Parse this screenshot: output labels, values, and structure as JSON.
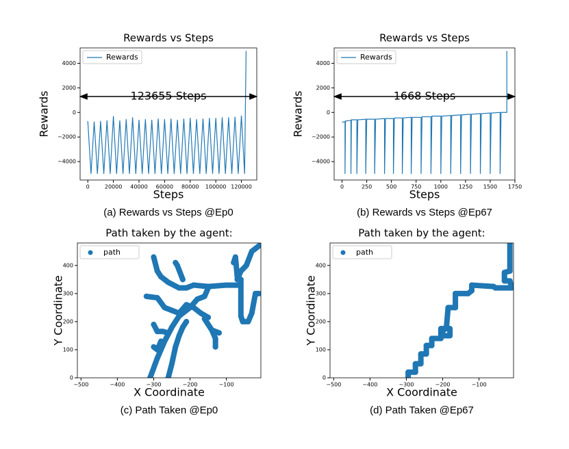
{
  "chart_data": [
    {
      "type": "line",
      "title": "Rewards vs Steps",
      "x_label": "Steps",
      "y_label": "Rewards",
      "annotation": "123655 Steps",
      "caption": "(a) Rewards vs Steps @Ep0",
      "legend": "upper left",
      "x": [
        0,
        2500,
        5000,
        7500,
        10000,
        12500,
        15000,
        17500,
        20000,
        22500,
        25000,
        27500,
        30000,
        32500,
        35000,
        37500,
        40000,
        42500,
        45000,
        47500,
        50000,
        52500,
        55000,
        57500,
        60000,
        62500,
        65000,
        67500,
        70000,
        72500,
        75000,
        77500,
        80000,
        82500,
        85000,
        87500,
        90000,
        92500,
        95000,
        97500,
        100000,
        102500,
        105000,
        107500,
        110000,
        112500,
        115000,
        117500,
        120000,
        122500,
        123655
      ],
      "series": [
        {
          "name": "Rewards",
          "color": "#1f77b4",
          "values": [
            -700,
            -5000,
            -750,
            -5000,
            -700,
            -5000,
            -650,
            -5000,
            -300,
            -5000,
            -650,
            -5000,
            -550,
            -5000,
            -400,
            -5000,
            -600,
            -5000,
            -550,
            -5000,
            -600,
            -5000,
            -500,
            -5000,
            -550,
            -5000,
            -500,
            -5000,
            -600,
            -5000,
            -500,
            -5000,
            -450,
            -5000,
            -550,
            -5000,
            -500,
            -5000,
            -450,
            -5000,
            -450,
            -5000,
            -400,
            -5000,
            -400,
            -5000,
            -350,
            -5000,
            -250,
            -5000,
            5000
          ]
        }
      ],
      "xlim": [
        -6000,
        132000
      ],
      "ylim": [
        -5500,
        5250
      ],
      "xticks": [
        0,
        20000,
        40000,
        60000,
        80000,
        100000,
        120000
      ],
      "yticks": [
        {
          "value": -4000,
          "label": "−4000"
        },
        {
          "value": -2000,
          "label": "−2000"
        },
        0,
        2000,
        4000
      ]
    },
    {
      "type": "line",
      "title": "Rewards vs Steps",
      "x_label": "Steps",
      "y_label": "Rewards",
      "annotation": "1668 Steps",
      "caption": "(b) Rewards vs Steps @Ep67",
      "legend": "upper left",
      "x": [
        0,
        30,
        30,
        35,
        90,
        90,
        95,
        150,
        150,
        160,
        240,
        240,
        250,
        330,
        330,
        340,
        430,
        430,
        440,
        520,
        520,
        530,
        610,
        610,
        620,
        700,
        700,
        710,
        800,
        800,
        810,
        900,
        900,
        910,
        1000,
        1000,
        1010,
        1100,
        1100,
        1110,
        1200,
        1200,
        1210,
        1300,
        1300,
        1310,
        1400,
        1400,
        1410,
        1500,
        1500,
        1510,
        1600,
        1600,
        1610,
        1668,
        1668
      ],
      "series": [
        {
          "name": "Rewards",
          "color": "#1f77b4",
          "values": [
            -800,
            -750,
            -5000,
            -700,
            -650,
            -5000,
            -600,
            -600,
            -5000,
            -600,
            -550,
            -5000,
            -550,
            -550,
            -5000,
            -550,
            -500,
            -5000,
            -500,
            -500,
            -5000,
            -450,
            -450,
            -5000,
            -450,
            -400,
            -5000,
            -400,
            -400,
            -5000,
            -350,
            -350,
            -5000,
            -300,
            -300,
            -5000,
            -300,
            -250,
            -5000,
            -250,
            -200,
            -5000,
            -200,
            -150,
            -5000,
            -150,
            -100,
            -5000,
            -100,
            -50,
            -5000,
            -50,
            0,
            -5000,
            0,
            0,
            5000
          ]
        }
      ],
      "xlim": [
        -80,
        1750
      ],
      "ylim": [
        -5500,
        5250
      ],
      "xticks": [
        0,
        250,
        500,
        750,
        1000,
        1250,
        1500,
        1750
      ],
      "yticks": [
        {
          "value": -4000,
          "label": "−4000"
        },
        {
          "value": -2000,
          "label": "−2000"
        },
        0,
        2000,
        4000
      ]
    },
    {
      "type": "scatter",
      "title": "Path taken by the agent:",
      "x_label": "X Coordinate",
      "y_label": "Y Coordinate",
      "caption": "(c) Path Taken @Ep0",
      "legend": "upper left",
      "series": [
        {
          "name": "path",
          "color": "#1f77b4",
          "x": [
            -300,
            -290,
            -280,
            -260,
            -230,
            -210,
            -190,
            -150,
            -100,
            -70,
            null,
            -320,
            -290,
            -270,
            -250,
            -230,
            -210,
            -190,
            -170,
            -150,
            null,
            -310,
            -290,
            -270,
            -250,
            -230,
            -200,
            -180,
            -160,
            -150,
            null,
            -260,
            -250,
            -240,
            -230,
            -220,
            -210,
            null,
            -280,
            -290,
            -300,
            null,
            -300,
            -290,
            -275,
            -260,
            null,
            -240,
            -235,
            -220,
            null,
            -130,
            -130,
            -140,
            -150,
            -160,
            null,
            -140,
            -120,
            null,
            -80,
            -75,
            -70,
            -60,
            -60,
            -55,
            -40,
            -30,
            -20,
            -10,
            null,
            -70,
            -60,
            -45,
            -30,
            -20,
            -10
          ],
          "values": [
            430,
            380,
            360,
            340,
            320,
            320,
            330,
            325,
            330,
            330,
            null,
            290,
            285,
            250,
            240,
            230,
            260,
            250,
            230,
            215,
            null,
            0,
            70,
            130,
            180,
            220,
            250,
            280,
            290,
            320,
            null,
            0,
            50,
            110,
            150,
            180,
            200,
            null,
            130,
            100,
            110,
            null,
            190,
            165,
            165,
            160,
            null,
            410,
            400,
            350,
            null,
            110,
            140,
            170,
            190,
            210,
            null,
            170,
            160,
            null,
            410,
            430,
            360,
            350,
            220,
            200,
            200,
            230,
            300,
            300,
            null,
            350,
            380,
            400,
            450,
            460,
            470
          ]
        }
      ],
      "xlim": [
        -510,
        -5
      ],
      "ylim": [
        0,
        480
      ],
      "xticks": [
        {
          "value": -500,
          "label": "−500"
        },
        {
          "value": -400,
          "label": "−400"
        },
        {
          "value": -300,
          "label": "−300"
        },
        {
          "value": -200,
          "label": "−200"
        },
        {
          "value": -100,
          "label": "−100"
        }
      ],
      "yticks": [
        0,
        100,
        200,
        300,
        400
      ]
    },
    {
      "type": "scatter",
      "title": "Path taken by the agent:",
      "x_label": "X Coordinate",
      "y_label": "Y Coordinate",
      "caption": "(d) Path Taken @Ep67",
      "legend": "upper left",
      "series": [
        {
          "name": "path",
          "color": "#1f77b4",
          "x": [
            -295,
            -295,
            -275,
            -275,
            -260,
            -260,
            -245,
            -245,
            -230,
            -230,
            -205,
            -205,
            -180,
            -180,
            -200,
            -200,
            -190,
            -185,
            -165,
            -165,
            -130,
            -120,
            -120,
            -60,
            -55,
            -10,
            -15,
            -30,
            -30,
            -15,
            -15
          ],
          "values": [
            0,
            20,
            20,
            50,
            50,
            85,
            85,
            115,
            115,
            140,
            140,
            175,
            175,
            150,
            150,
            170,
            175,
            250,
            250,
            300,
            300,
            310,
            330,
            325,
            320,
            320,
            345,
            345,
            375,
            380,
            480
          ]
        }
      ],
      "xlim": [
        -510,
        -5
      ],
      "ylim": [
        0,
        480
      ],
      "xticks": [
        {
          "value": -500,
          "label": "−500"
        },
        {
          "value": -400,
          "label": "−400"
        },
        {
          "value": -300,
          "label": "−300"
        },
        {
          "value": -200,
          "label": "−200"
        },
        {
          "value": -100,
          "label": "−100"
        }
      ],
      "yticks": [
        0,
        100,
        200,
        300,
        400
      ]
    }
  ]
}
